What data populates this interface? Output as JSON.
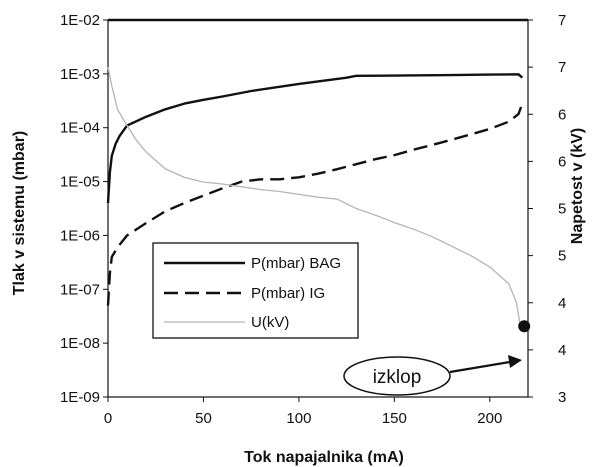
{
  "chart_data": {
    "type": "line",
    "xlabel": "Tok napajalnika (mA)",
    "ylabel_left": "Tlak v sistemu (mbar)",
    "ylabel_right": "Napetost v (kV)",
    "xlim": [
      0,
      220
    ],
    "xticks": [
      "0",
      "50",
      "100",
      "150",
      "200"
    ],
    "ylim_left": [
      1e-09,
      0.01
    ],
    "y_scale_left": "log",
    "yticks_left": [
      "1E-09",
      "1E-08",
      "1E-07",
      "1E-06",
      "1E-05",
      "1E-04",
      "1E-03",
      "1E-02"
    ],
    "ylim_right": [
      3,
      7
    ],
    "yticks_right": [
      "3",
      "4",
      "4",
      "5",
      "5",
      "6",
      "6",
      "7",
      "7"
    ],
    "legend": {
      "placement": "center-left"
    },
    "grid": false,
    "series": [
      {
        "name": "P(mbar) BAG",
        "axis": "left",
        "style": "solid",
        "color": "#111111",
        "x": [
          0,
          1,
          2,
          4,
          6,
          10,
          20,
          30,
          40,
          50,
          60,
          75,
          100,
          125,
          130,
          150,
          180,
          200,
          215,
          217
        ],
        "y": [
          4e-06,
          1.5e-05,
          3e-05,
          5e-05,
          7e-05,
          0.00011,
          0.00016,
          0.00022,
          0.00028,
          0.00033,
          0.00038,
          0.00048,
          0.00065,
          0.00085,
          0.00092,
          0.00093,
          0.00095,
          0.00097,
          0.00098,
          0.00085
        ]
      },
      {
        "name": "P(mbar) IG",
        "axis": "left",
        "style": "dashed",
        "color": "#111111",
        "x": [
          0,
          1,
          2,
          5,
          10,
          15,
          20,
          30,
          40,
          50,
          60,
          70,
          80,
          90,
          100,
          110,
          120,
          130,
          140,
          150,
          160,
          170,
          180,
          190,
          200,
          210,
          215,
          217
        ],
        "y": [
          5e-08,
          2e-07,
          4e-07,
          6e-07,
          1e-06,
          1.3e-06,
          1.7e-06,
          2.8e-06,
          4e-06,
          5.5e-06,
          7.5e-06,
          1e-05,
          1.1e-05,
          1.1e-05,
          1.2e-05,
          1.4e-05,
          1.7e-05,
          2.1e-05,
          2.6e-05,
          3.1e-05,
          3.9e-05,
          4.8e-05,
          6e-05,
          7.5e-05,
          9.5e-05,
          0.00013,
          0.00018,
          0.00028
        ]
      },
      {
        "name": "U(kV)",
        "axis": "right",
        "style": "solid-thin",
        "color": "#b5b5b5",
        "x": [
          0,
          2,
          5,
          10,
          15,
          20,
          30,
          40,
          50,
          60,
          70,
          80,
          90,
          100,
          110,
          120,
          130,
          140,
          150,
          160,
          170,
          180,
          190,
          200,
          210,
          214,
          216
        ],
        "y": [
          6.5,
          6.3,
          6.05,
          5.88,
          5.72,
          5.6,
          5.42,
          5.33,
          5.28,
          5.26,
          5.23,
          5.2,
          5.18,
          5.15,
          5.12,
          5.1,
          5.0,
          4.93,
          4.85,
          4.78,
          4.7,
          4.6,
          4.5,
          4.38,
          4.2,
          4.0,
          3.75
        ]
      }
    ],
    "annotation": {
      "text": "izklop",
      "marker_x": 218,
      "marker_y_right": 3.75
    }
  }
}
